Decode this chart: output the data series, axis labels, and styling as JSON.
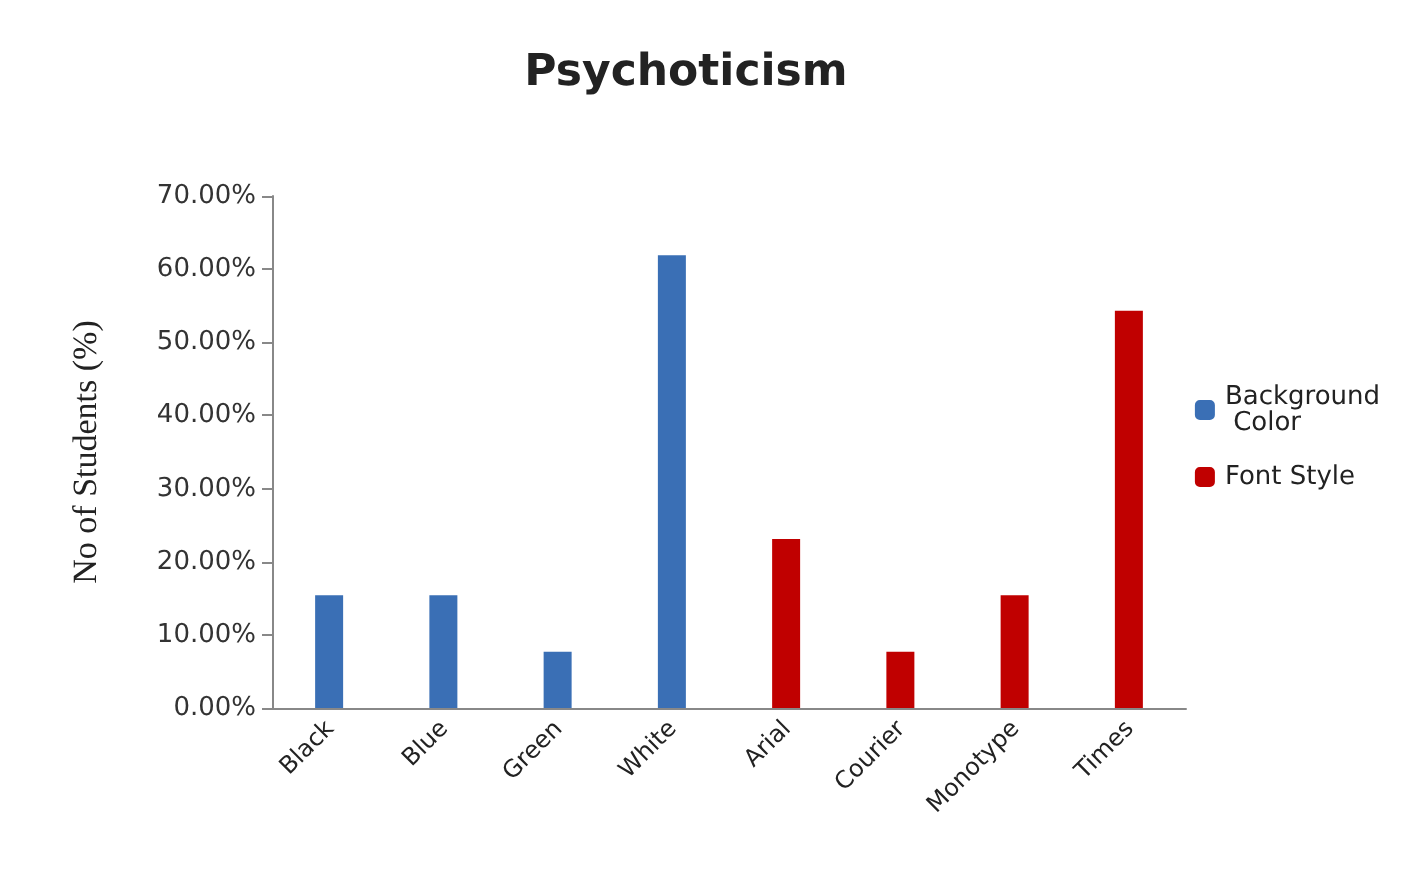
{
  "chart_data": {
    "type": "bar",
    "title": "Psychoticism",
    "ylabel": "No of Students (%)",
    "categories": [
      "Black",
      "Blue",
      "Green",
      "White",
      "Arial",
      "Courier",
      "Monotype",
      "Times"
    ],
    "series": [
      {
        "name": "Background Color",
        "color": "#3a6fb5",
        "values": [
          15.4,
          15.4,
          7.7,
          61.9,
          null,
          null,
          null,
          null
        ]
      },
      {
        "name": "Font Style",
        "color": "#c00000",
        "values": [
          null,
          null,
          null,
          null,
          23.1,
          7.7,
          15.4,
          54.3
        ]
      }
    ],
    "ylim": [
      0,
      70
    ],
    "yticks": [
      {
        "value": 0,
        "label": "0.00%"
      },
      {
        "value": 10,
        "label": "10.00%"
      },
      {
        "value": 20,
        "label": "20.00%"
      },
      {
        "value": 30,
        "label": "30.00%"
      },
      {
        "value": 40,
        "label": "40.00%"
      },
      {
        "value": 50,
        "label": "50.00%"
      },
      {
        "value": 60,
        "label": "60.00%"
      },
      {
        "value": 70,
        "label": "70.00%"
      }
    ],
    "grid": false,
    "legend": "right"
  }
}
